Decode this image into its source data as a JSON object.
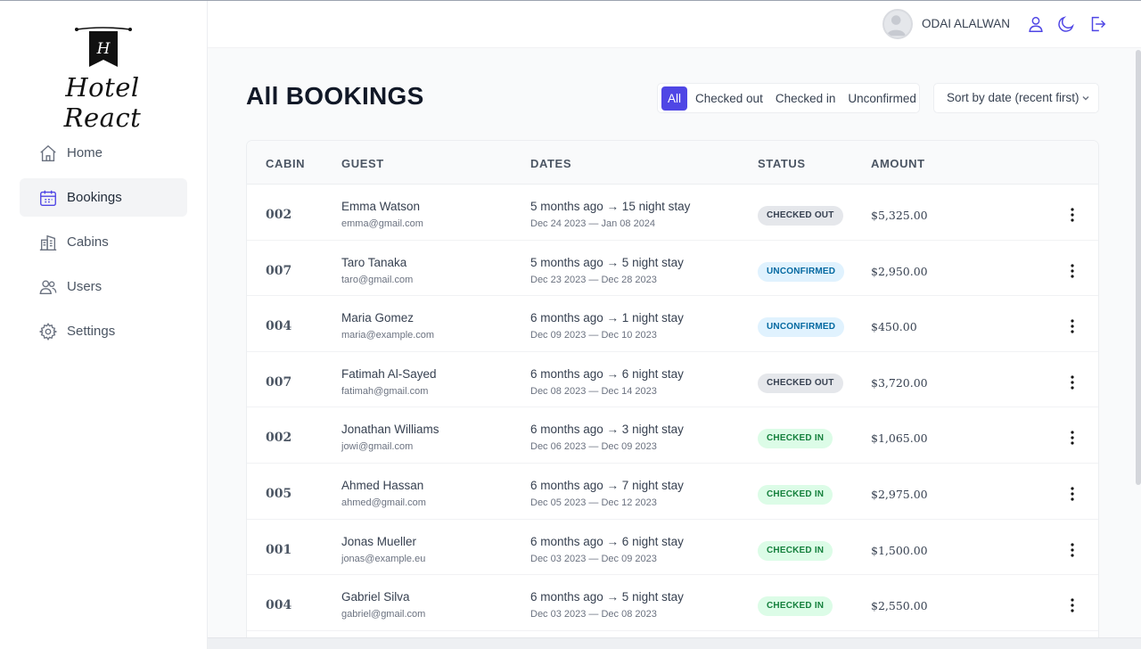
{
  "app": {
    "logo_text": "Hotel React",
    "logo_letter": "H"
  },
  "sidebar": {
    "items": [
      {
        "label": "Home",
        "icon": "home-icon"
      },
      {
        "label": "Bookings",
        "icon": "calendar-icon",
        "active": true
      },
      {
        "label": "Cabins",
        "icon": "building-icon"
      },
      {
        "label": "Users",
        "icon": "users-icon"
      },
      {
        "label": "Settings",
        "icon": "gear-icon"
      }
    ]
  },
  "header": {
    "user_name": "ODAI ALALWAN",
    "icons": [
      "user-icon",
      "moon-icon",
      "logout-icon"
    ]
  },
  "main": {
    "title": "All BOOKINGS",
    "filters": [
      "All",
      "Checked out",
      "Checked in",
      "Unconfirmed"
    ],
    "active_filter": "All",
    "sort_label": "Sort by date (recent first)"
  },
  "table": {
    "columns": [
      "CABIN",
      "GUEST",
      "DATES",
      "STATUS",
      "AMOUNT"
    ],
    "rows": [
      {
        "cabin": "002",
        "name": "Emma Watson",
        "email": "emma@gmail.com",
        "when": "5 months ago → 15 night stay",
        "range": "Dec 24 2023 — Jan 08 2024",
        "status": "CHECKED OUT",
        "amount": "$5,325.00"
      },
      {
        "cabin": "007",
        "name": "Taro Tanaka",
        "email": "taro@gmail.com",
        "when": "5 months ago → 5 night stay",
        "range": "Dec 23 2023 — Dec 28 2023",
        "status": "UNCONFIRMED",
        "amount": "$2,950.00"
      },
      {
        "cabin": "004",
        "name": "Maria Gomez",
        "email": "maria@example.com",
        "when": "6 months ago → 1 night stay",
        "range": "Dec 09 2023 — Dec 10 2023",
        "status": "UNCONFIRMED",
        "amount": "$450.00"
      },
      {
        "cabin": "007",
        "name": "Fatimah Al-Sayed",
        "email": "fatimah@gmail.com",
        "when": "6 months ago → 6 night stay",
        "range": "Dec 08 2023 — Dec 14 2023",
        "status": "CHECKED OUT",
        "amount": "$3,720.00"
      },
      {
        "cabin": "002",
        "name": "Jonathan Williams",
        "email": "jowi@gmail.com",
        "when": "6 months ago → 3 night stay",
        "range": "Dec 06 2023 — Dec 09 2023",
        "status": "CHECKED IN",
        "amount": "$1,065.00"
      },
      {
        "cabin": "005",
        "name": "Ahmed Hassan",
        "email": "ahmed@gmail.com",
        "when": "6 months ago → 7 night stay",
        "range": "Dec 05 2023 — Dec 12 2023",
        "status": "CHECKED IN",
        "amount": "$2,975.00"
      },
      {
        "cabin": "001",
        "name": "Jonas Mueller",
        "email": "jonas@example.eu",
        "when": "6 months ago → 6 night stay",
        "range": "Dec 03 2023 — Dec 09 2023",
        "status": "CHECKED IN",
        "amount": "$1,500.00"
      },
      {
        "cabin": "004",
        "name": "Gabriel Silva",
        "email": "gabriel@gmail.com",
        "when": "6 months ago → 5 night stay",
        "range": "Dec 03 2023 — Dec 08 2023",
        "status": "CHECKED IN",
        "amount": "$2,550.00"
      }
    ]
  },
  "colors": {
    "accent": "#4f46e5",
    "checked_out_bg": "#e5e7eb",
    "unconfirmed_bg": "#e0f2fe",
    "checked_in_bg": "#dcfce7"
  }
}
